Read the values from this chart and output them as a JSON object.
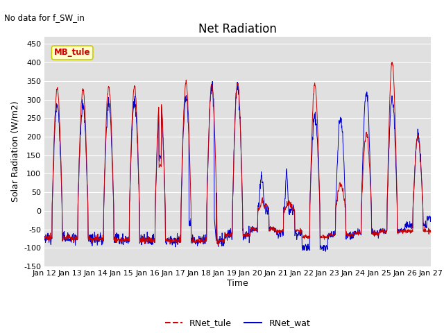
{
  "title": "Net Radiation",
  "xlabel": "Time",
  "ylabel": "Solar Radiation (W/m2)",
  "note": "No data for f_SW_in",
  "legend_label1": "RNet_tule",
  "legend_label2": "RNet_wat",
  "color1": "#cc0000",
  "color2": "#0000cc",
  "ylim": [
    -150,
    470
  ],
  "yticks": [
    -150,
    -100,
    -50,
    0,
    50,
    100,
    150,
    200,
    250,
    300,
    350,
    400,
    450
  ],
  "bg_color": "#e0e0e0",
  "textbox_label": "MB_tule",
  "textbox_color": "#ffffcc",
  "textbox_edge": "#cccc00",
  "n_days": 15,
  "start_day": 12,
  "n_per_day": 96,
  "title_fontsize": 12,
  "label_fontsize": 9,
  "tick_fontsize": 8,
  "legend_fontsize": 9
}
